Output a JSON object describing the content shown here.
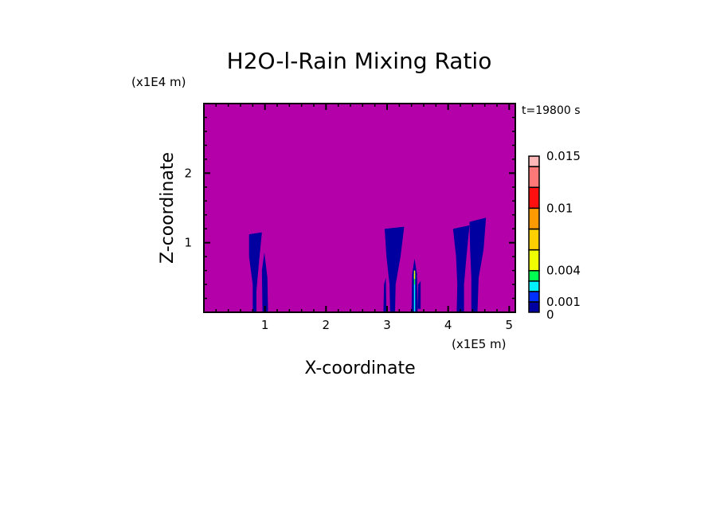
{
  "chart_data": {
    "type": "heatmap",
    "title": "H2O-l-Rain Mixing Ratio",
    "xlabel": "X-coordinate",
    "ylabel": "Z-coordinate",
    "x_unit": "(x1E5 m)",
    "y_unit": "(x1E4 m)",
    "time_label": "t=19800 s",
    "xlim": [
      0,
      5.1
    ],
    "ylim": [
      0,
      3.0
    ],
    "x_ticks": [
      1,
      2,
      3,
      4,
      5
    ],
    "x_tick_labels": [
      "1",
      "2",
      "3",
      "4",
      "5"
    ],
    "y_ticks": [
      1,
      2
    ],
    "y_tick_labels": [
      "1",
      "2"
    ],
    "minor_tick_step": 0.2,
    "background_color": "#b400a8",
    "colorbar": {
      "levels": [
        0,
        0.001,
        0.002,
        0.003,
        0.004,
        0.006,
        0.008,
        0.01,
        0.012,
        0.014,
        0.015
      ],
      "colors": [
        "#0000a0",
        "#0030ff",
        "#00f0ff",
        "#00ff50",
        "#f0ff00",
        "#ffd000",
        "#ff9a00",
        "#ff1010",
        "#ff7878",
        "#ffb8b8"
      ],
      "tick_values": [
        0.015,
        0.01,
        0.004,
        0.001,
        0
      ],
      "tick_labels": [
        "0.015",
        "0.01",
        "0.004",
        "0.001",
        "0"
      ]
    },
    "features": [
      {
        "color": "#0000a0",
        "points": [
          [
            0.74,
            1.12
          ],
          [
            0.95,
            1.15
          ],
          [
            0.9,
            0.7
          ],
          [
            0.86,
            0.3
          ],
          [
            0.86,
            0
          ],
          [
            0.8,
            0
          ],
          [
            0.8,
            0.4
          ],
          [
            0.74,
            0.8
          ]
        ]
      },
      {
        "color": "#0000a0",
        "points": [
          [
            0.96,
            0
          ],
          [
            1.05,
            0
          ],
          [
            1.04,
            0.5
          ],
          [
            0.99,
            0.86
          ],
          [
            0.95,
            0.6
          ]
        ]
      },
      {
        "color": "#0000a0",
        "points": [
          [
            2.96,
            1.2
          ],
          [
            3.28,
            1.23
          ],
          [
            3.22,
            0.8
          ],
          [
            3.14,
            0.4
          ],
          [
            3.13,
            0
          ],
          [
            3.05,
            0
          ],
          [
            3.04,
            0.4
          ],
          [
            2.99,
            0.8
          ]
        ]
      },
      {
        "color": "#0000a0",
        "points": [
          [
            2.94,
            0
          ],
          [
            2.99,
            0
          ],
          [
            2.98,
            0.5
          ],
          [
            2.95,
            0.4
          ]
        ]
      },
      {
        "color": "#0000a0",
        "points": [
          [
            3.4,
            0
          ],
          [
            3.5,
            0
          ],
          [
            3.49,
            0.55
          ],
          [
            3.45,
            0.77
          ],
          [
            3.41,
            0.55
          ]
        ]
      },
      {
        "color": "#0000a0",
        "points": [
          [
            3.5,
            0.05
          ],
          [
            3.55,
            0.05
          ],
          [
            3.55,
            0.45
          ],
          [
            3.51,
            0.4
          ]
        ]
      },
      {
        "color": "#0000a0",
        "points": [
          [
            4.08,
            1.2
          ],
          [
            4.35,
            1.25
          ],
          [
            4.3,
            0.8
          ],
          [
            4.26,
            0.4
          ],
          [
            4.26,
            0
          ],
          [
            4.14,
            0
          ],
          [
            4.15,
            0.4
          ],
          [
            4.13,
            0.8
          ]
        ]
      },
      {
        "color": "#0000a0",
        "points": [
          [
            4.35,
            1.3
          ],
          [
            4.62,
            1.36
          ],
          [
            4.58,
            0.9
          ],
          [
            4.5,
            0.5
          ],
          [
            4.48,
            0
          ],
          [
            4.38,
            0
          ],
          [
            4.38,
            0.5
          ],
          [
            4.36,
            0.9
          ]
        ]
      },
      {
        "color": "#00f0ff",
        "points": [
          [
            3.44,
            0
          ],
          [
            3.46,
            0
          ],
          [
            3.46,
            0.4
          ],
          [
            3.44,
            0.4
          ]
        ]
      },
      {
        "color": "#00ff50",
        "points": [
          [
            3.44,
            0.4
          ],
          [
            3.46,
            0.4
          ],
          [
            3.46,
            0.55
          ],
          [
            3.44,
            0.55
          ]
        ]
      },
      {
        "color": "#f0ff00",
        "points": [
          [
            3.44,
            0.48
          ],
          [
            3.46,
            0.48
          ],
          [
            3.46,
            0.6
          ],
          [
            3.44,
            0.6
          ]
        ]
      }
    ]
  }
}
